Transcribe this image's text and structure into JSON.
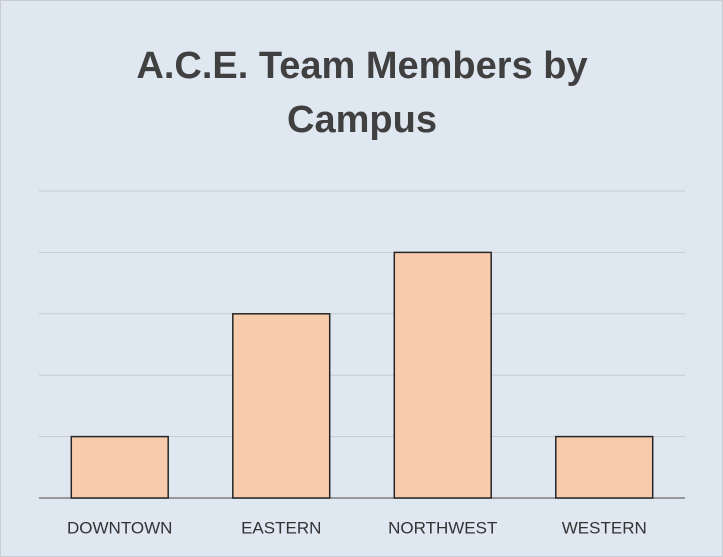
{
  "chart_data": {
    "type": "bar",
    "title": "A.C.E. Team Members by Campus",
    "categories": [
      "DOWNTOWN",
      "EASTERN",
      "NORTHWEST",
      "WESTERN"
    ],
    "values": [
      1,
      3,
      4,
      1
    ],
    "color": "#f9cbad",
    "ylim": [
      0,
      5
    ],
    "yticks": [
      0,
      1,
      2,
      3,
      4,
      5
    ],
    "grid": true
  }
}
